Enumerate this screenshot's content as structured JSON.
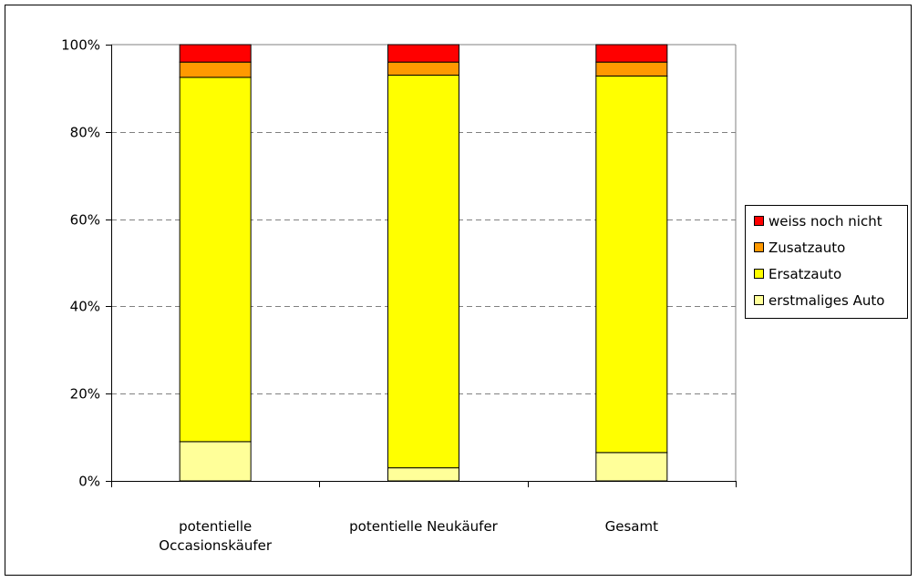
{
  "chart_data": {
    "type": "bar",
    "stacked": true,
    "percent": true,
    "categories": [
      [
        "potentielle",
        "Occasionskäufer"
      ],
      [
        "potentielle Neukäufer"
      ],
      [
        "Gesamt"
      ]
    ],
    "series": [
      {
        "name": "erstmaliges Auto",
        "color": "#FFFF99",
        "values": [
          9,
          3,
          6.5
        ]
      },
      {
        "name": "Ersatzauto",
        "color": "#FFFF00",
        "values": [
          83.5,
          90,
          86.3
        ]
      },
      {
        "name": "Zusatzauto",
        "color": "#FF9900",
        "values": [
          3.5,
          3,
          3.2
        ]
      },
      {
        "name": "weiss noch nicht",
        "color": "#FF0000",
        "values": [
          4,
          4,
          4
        ]
      }
    ],
    "ylim": [
      0,
      100
    ],
    "yticks": [
      "0%",
      "20%",
      "40%",
      "60%",
      "80%",
      "100%"
    ],
    "ytick_values": [
      0,
      20,
      40,
      60,
      80,
      100
    ],
    "grid": true,
    "legend_position": "right",
    "legend_order": [
      "weiss noch nicht",
      "Zusatzauto",
      "Ersatzauto",
      "erstmaliges Auto"
    ]
  }
}
